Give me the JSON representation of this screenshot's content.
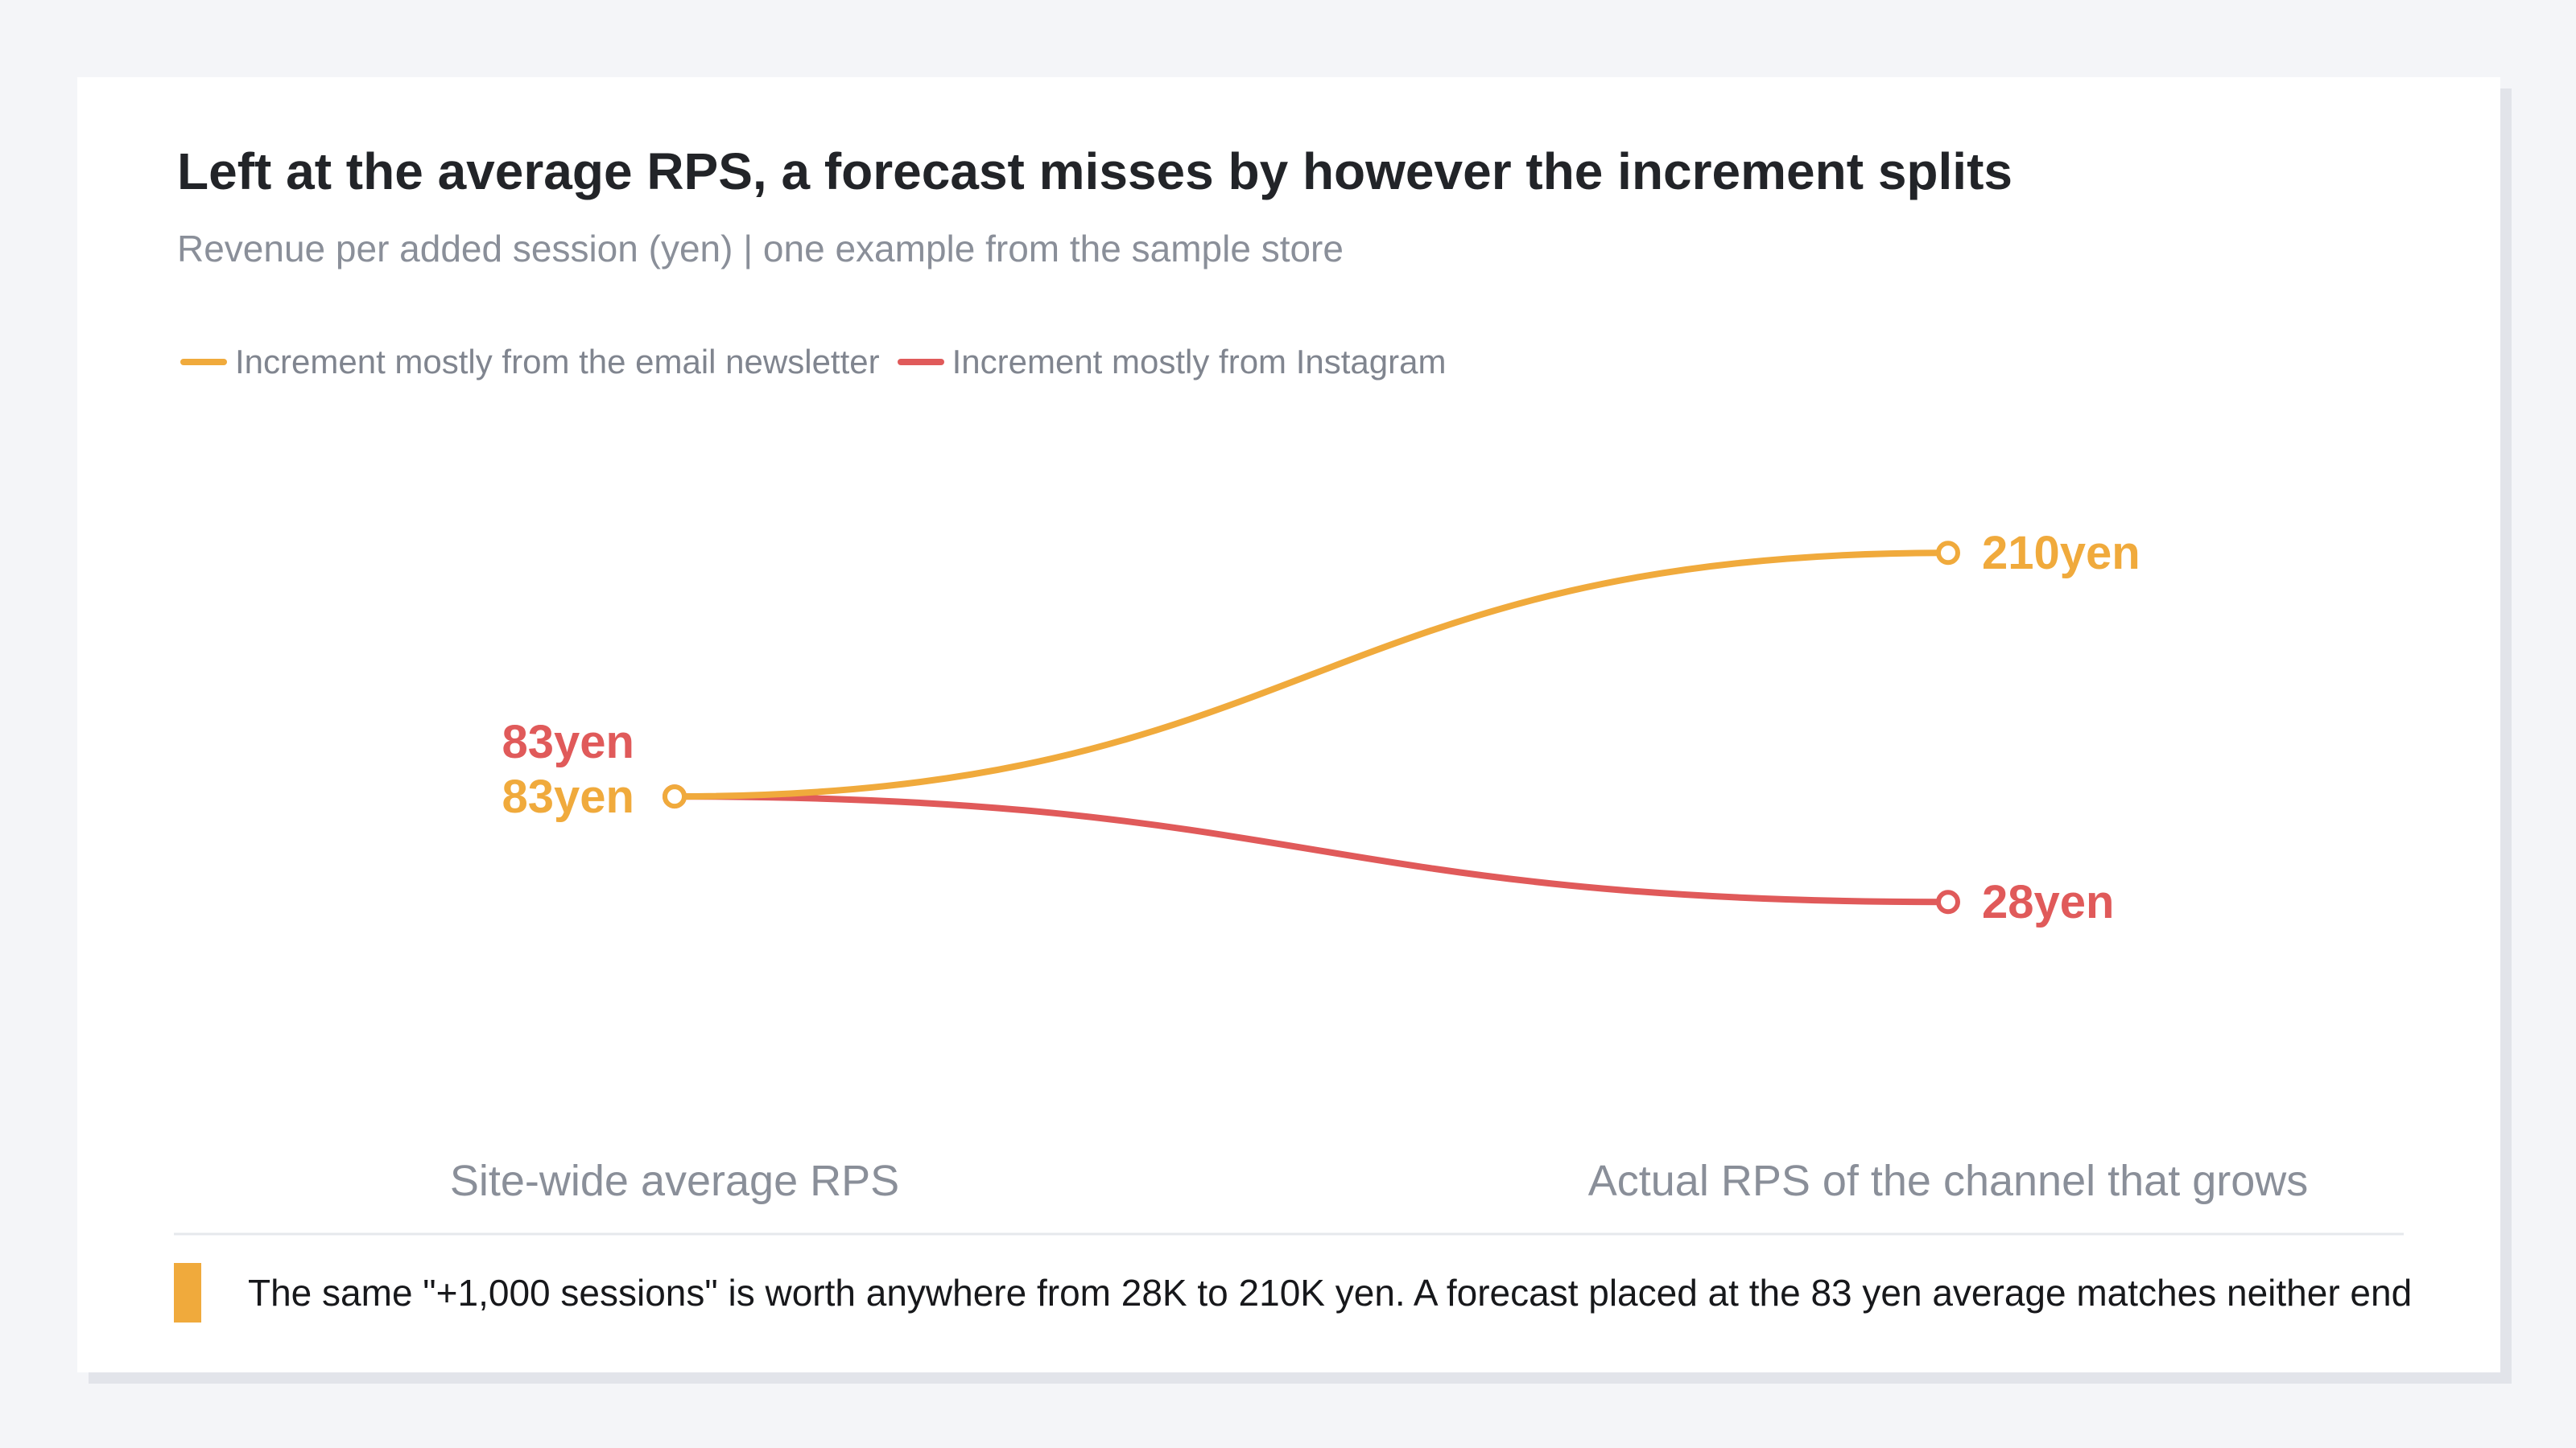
{
  "card": {
    "title": "Left at the average RPS, a forecast misses by however the increment splits",
    "subtitle": "Revenue per added session (yen) | one example from the sample store",
    "note": "The same \"+1,000 sessions\" is worth anywhere from 28K to 210K yen. A forecast placed at the 83 yen average matches neither end",
    "note_accent_color": "#f0aa3c"
  },
  "chart_data": {
    "type": "line",
    "title": "Left at the average RPS, a forecast misses by however the increment splits",
    "subtitle": "Revenue per added session (yen) | one example from the sample store",
    "categories": [
      "Site-wide average RPS",
      "Actual RPS of the channel that grows"
    ],
    "ylim": [
      0,
      260
    ],
    "grid": false,
    "legend_position": "top-left",
    "series": [
      {
        "name": "Increment mostly from the email newsletter",
        "color": "#f0aa3c",
        "values": [
          83,
          210
        ],
        "labels": [
          "83yen",
          "210yen"
        ]
      },
      {
        "name": "Increment mostly from Instagram",
        "color": "#e05a5a",
        "values": [
          83,
          28
        ],
        "labels": [
          "83yen",
          "28yen"
        ]
      }
    ]
  }
}
